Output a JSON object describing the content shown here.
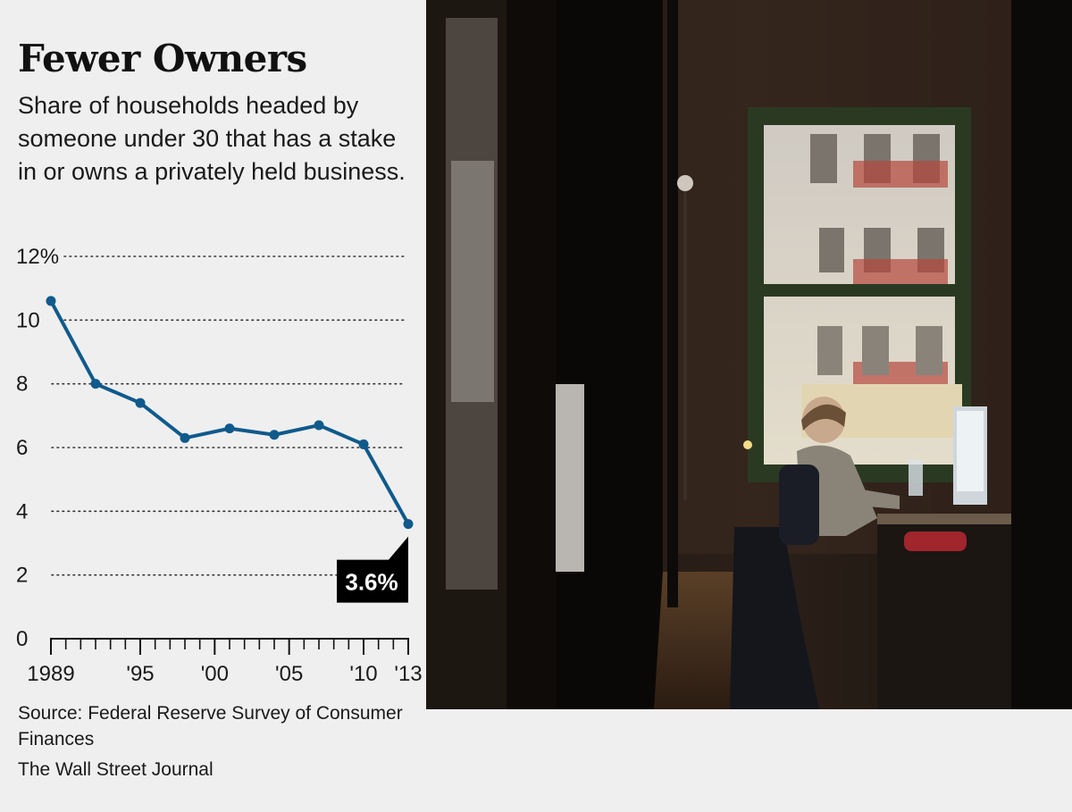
{
  "header": {
    "title": "Fewer Owners",
    "subtitle": "Share of households headed by someone under 30 that has a stake in or owns a privately held business."
  },
  "footer": {
    "source": "Source: Federal Reserve Survey of Consumer Finances",
    "credit": "The Wall Street Journal"
  },
  "colors": {
    "line": "#0f5a8c",
    "callout_bg": "#000000",
    "callout_text": "#ffffff"
  },
  "chart_data": {
    "type": "line",
    "title": "Fewer Owners",
    "subtitle": "Share of households headed by someone under 30 that has a stake in or owns a privately held business.",
    "xlabel": "",
    "ylabel": "",
    "x": [
      1989,
      1992,
      1995,
      1998,
      2001,
      2004,
      2007,
      2010,
      2013
    ],
    "series": [
      {
        "values": [
          10.6,
          8.0,
          7.4,
          6.3,
          6.6,
          6.4,
          6.7,
          6.1,
          3.6
        ]
      }
    ],
    "ylim": [
      0,
      12
    ],
    "xlim": [
      1989,
      2013
    ],
    "y_ticks": [
      0,
      2,
      4,
      6,
      8,
      10,
      12
    ],
    "y_tick_labels": [
      "0",
      "2",
      "4",
      "6",
      "8",
      "10",
      "12%"
    ],
    "x_ticks": [
      1989,
      1995,
      2000,
      2005,
      2010,
      2013
    ],
    "x_tick_labels": [
      "1989",
      "'95",
      "'00",
      "'05",
      "'10",
      "'13"
    ],
    "grid": "dotted horizontal",
    "annotation": {
      "x": 2013,
      "y": 3.6,
      "text": "3.6%"
    }
  },
  "photo": {
    "description_icon": "photo-office-woman-at-desk"
  }
}
